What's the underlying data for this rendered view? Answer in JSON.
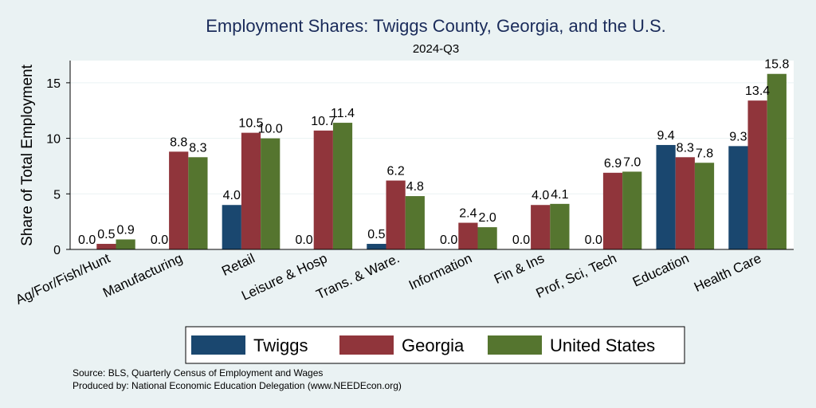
{
  "chart_data": {
    "type": "bar",
    "title": "Employment Shares: Twiggs County, Georgia, and the U.S.",
    "subtitle": "2024-Q3",
    "xlabel": "",
    "ylabel": "Share of Total Employment",
    "ylim": [
      0,
      17
    ],
    "yticks": [
      0,
      5,
      10,
      15
    ],
    "grid": true,
    "legend_position": "bottom",
    "categories": [
      "Ag/For/Fish/Hunt",
      "Manufacturing",
      "Retail",
      "Leisure & Hosp",
      "Trans. & Ware.",
      "Information",
      "Fin & Ins",
      "Prof, Sci, Tech",
      "Education",
      "Health Care"
    ],
    "series": [
      {
        "name": "Twiggs",
        "color": "#1a476f",
        "values": [
          0.0,
          0.0,
          4.0,
          0.0,
          0.5,
          0.0,
          0.0,
          0.0,
          9.4,
          9.3
        ]
      },
      {
        "name": "Georgia",
        "color": "#90353b",
        "values": [
          0.5,
          8.8,
          10.5,
          10.7,
          6.2,
          2.4,
          4.0,
          6.9,
          8.3,
          13.4
        ]
      },
      {
        "name": "United States",
        "color": "#55752f",
        "values": [
          0.9,
          8.3,
          10.0,
          11.4,
          4.8,
          2.0,
          4.1,
          7.0,
          7.8,
          15.8
        ]
      }
    ]
  },
  "source": {
    "line1": "Source: BLS, Quarterly Census of Employment and Wages",
    "line2": "Produced by: National Economic Education Delegation (www.NEEDEcon.org)"
  }
}
